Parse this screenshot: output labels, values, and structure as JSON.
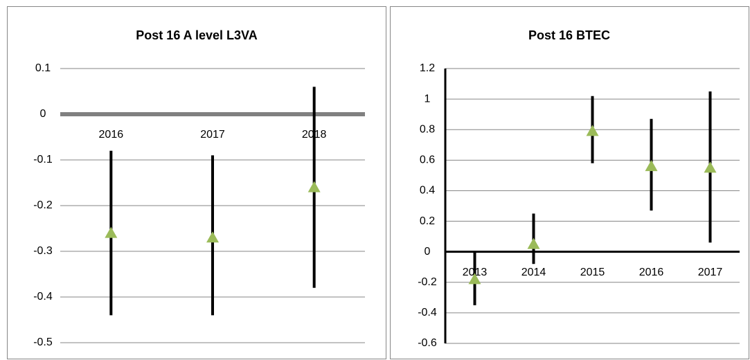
{
  "chart_data": [
    {
      "type": "errorbar",
      "title": "Post 16 A level L3VA",
      "categories": [
        "2016",
        "2017",
        "2018"
      ],
      "series": [
        {
          "color": "#9bbb59",
          "values": [
            -0.26,
            -0.27,
            -0.16
          ],
          "high": [
            -0.08,
            -0.09,
            0.06
          ],
          "low": [
            -0.44,
            -0.44,
            -0.38
          ]
        }
      ],
      "ylim": [
        -0.5,
        0.1
      ],
      "yticks": [
        -0.5,
        -0.4,
        -0.3,
        -0.2,
        -0.1,
        0,
        0.1
      ],
      "grid": true,
      "zero_line_color": "#808080",
      "y_axis_line": false
    },
    {
      "type": "errorbar",
      "title": "Post 16 BTEC",
      "categories": [
        "2013",
        "2014",
        "2015",
        "2016",
        "2017"
      ],
      "series": [
        {
          "color": "#9bbb59",
          "values": [
            -0.18,
            0.05,
            0.79,
            0.56,
            0.55
          ],
          "high": [
            0,
            0.25,
            1.02,
            0.87,
            1.05
          ],
          "low": [
            -0.35,
            -0.08,
            0.58,
            0.27,
            0.06
          ]
        }
      ],
      "ylim": [
        -0.6,
        1.2
      ],
      "yticks": [
        -0.6,
        -0.4,
        -0.2,
        0,
        0.2,
        0.4,
        0.6,
        0.8,
        1,
        1.2
      ],
      "grid": true,
      "zero_line_color": "#000000",
      "y_axis_line": true
    }
  ]
}
